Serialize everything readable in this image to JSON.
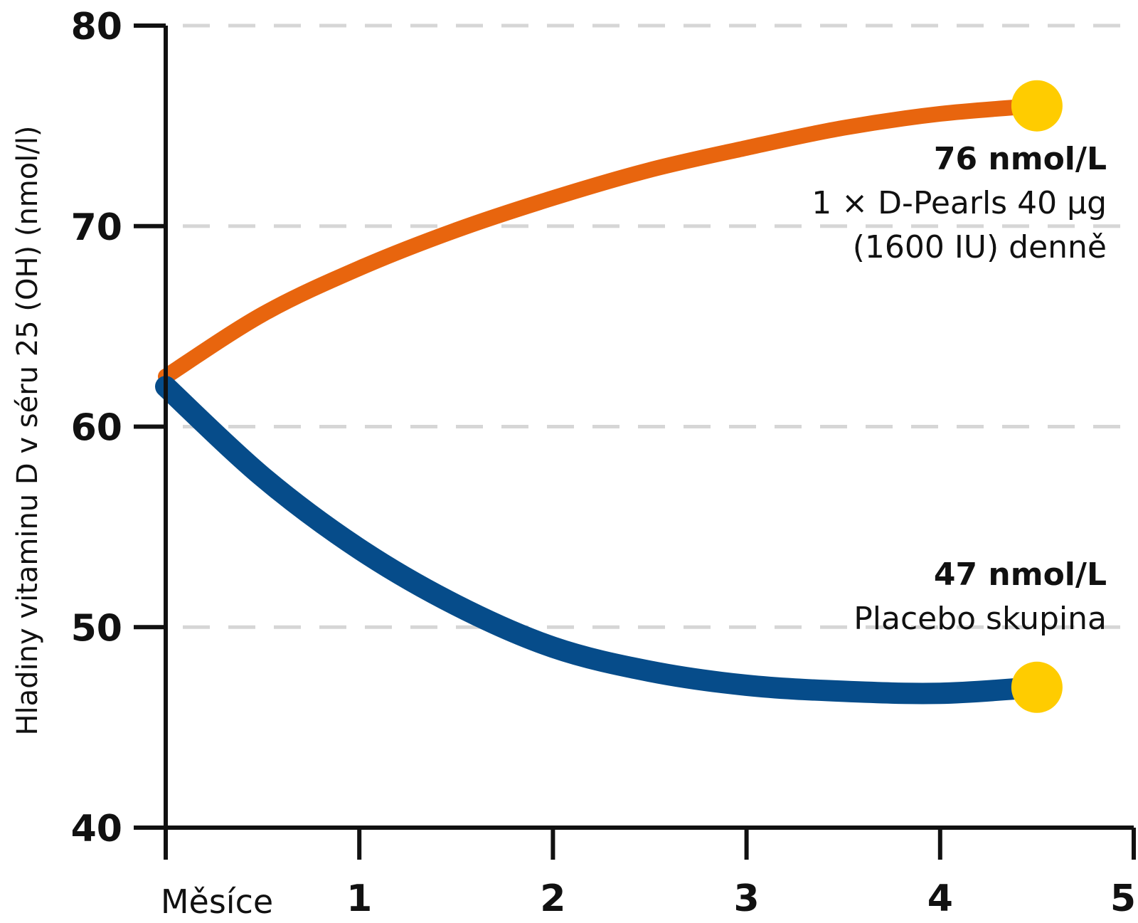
{
  "chart_data": {
    "type": "line",
    "ylabel": "Hladiny vitaminu D v séru 25 (OH) (nmol/l)",
    "x_origin_label": "Měsíce",
    "xlim": [
      0,
      5
    ],
    "ylim": [
      40,
      80
    ],
    "x_ticks": [
      0,
      1,
      2,
      3,
      4,
      5
    ],
    "x_tick_labels": [
      "",
      "1",
      "2",
      "3",
      "4",
      "5"
    ],
    "y_ticks": [
      40,
      50,
      60,
      70,
      80
    ],
    "y_tick_labels": [
      "40",
      "50",
      "60",
      "70",
      "80"
    ],
    "grid": "horizontal dashed",
    "series": [
      {
        "color": "#E8650E",
        "x": [
          0,
          0.5,
          1,
          1.5,
          2,
          2.5,
          3,
          3.5,
          4,
          4.5
        ],
        "y": [
          62.5,
          65.6,
          67.9,
          69.8,
          71.4,
          72.8,
          73.9,
          74.9,
          75.6,
          76
        ],
        "end_marker_color": "#FFCC00",
        "annotation": {
          "value": "76 nmol/L",
          "lines": [
            "1 × D-Pearls 40 µg",
            "(1600 IU) denně"
          ]
        }
      },
      {
        "color": "#064C8A",
        "x": [
          0,
          0.5,
          1,
          1.5,
          2,
          2.5,
          3,
          3.5,
          4,
          4.5
        ],
        "y": [
          62,
          57.5,
          53.9,
          51.1,
          49,
          47.8,
          47.1,
          46.8,
          46.7,
          47
        ],
        "end_marker_color": "#FFCC00",
        "annotation": {
          "value": "47 nmol/L",
          "lines": [
            "Placebo skupina"
          ]
        }
      }
    ]
  }
}
